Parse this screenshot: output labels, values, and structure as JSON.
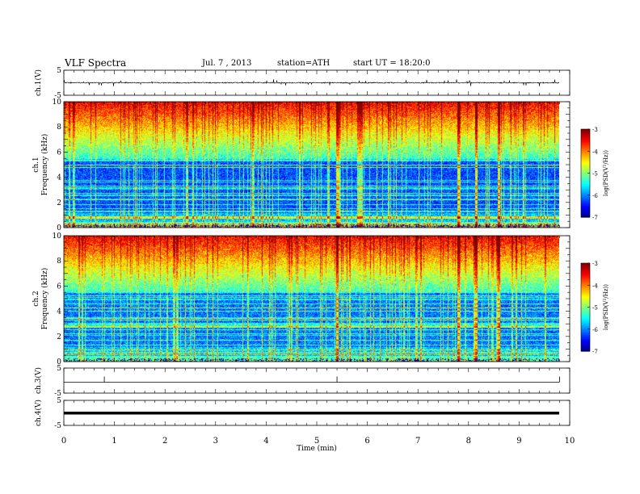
{
  "header": {
    "title": "VLF Spectra",
    "date": "Jul. 7 , 2013",
    "station": "station=ATH",
    "start": "start UT = 18:20:0"
  },
  "chart_data": [
    {
      "type": "line",
      "panel": "ch1-waveform",
      "ylabel": "ch.1(V)",
      "yticks": [
        "5",
        "-5"
      ],
      "ylim": [
        -5,
        5
      ],
      "xlim": [
        0,
        9.8
      ],
      "baseline": 0,
      "color": "#000000"
    },
    {
      "type": "heatmap",
      "panel": "ch1-spectrogram",
      "ylabel_top": "ch.1",
      "ylabel": "Frequency (kHz)",
      "yticks": [
        "0",
        "2",
        "4",
        "6",
        "8",
        "10"
      ],
      "ylim": [
        0,
        10
      ],
      "xlim": [
        0,
        9.8
      ],
      "colorbar": {
        "label": "log(PSD(V²/Hz))",
        "ticks": [
          "-3",
          "-4",
          "-5",
          "-6",
          "-7"
        ],
        "range": [
          -7,
          -3
        ]
      },
      "strong_sferics_min": [
        5.4,
        7.8,
        8.15,
        8.6
      ]
    },
    {
      "type": "heatmap",
      "panel": "ch2-spectrogram",
      "ylabel_top": "ch.2",
      "ylabel": "Frequency (kHz)",
      "yticks": [
        "0",
        "2",
        "4",
        "6",
        "8",
        "10"
      ],
      "ylim": [
        0,
        10
      ],
      "xlim": [
        0,
        9.8
      ],
      "colorbar": {
        "label": "log(PSD(V²/Hz))",
        "ticks": [
          "-3",
          "-4",
          "-5",
          "-6",
          "-7"
        ],
        "range": [
          -7,
          -3
        ]
      },
      "strong_sferics_min": [
        5.4,
        7.8,
        8.15,
        8.6
      ]
    },
    {
      "type": "line",
      "panel": "ch3-waveform",
      "ylabel": "ch.3(V)",
      "yticks": [
        "5",
        "-5"
      ],
      "ylim": [
        -5,
        5
      ],
      "xlim": [
        0,
        9.8
      ],
      "baseline": 0,
      "spikes_min": [
        0.8,
        5.4,
        9.8
      ],
      "color": "#000000"
    },
    {
      "type": "line",
      "panel": "ch4-waveform",
      "ylabel": "ch.4(V)",
      "yticks": [
        "5",
        "-5"
      ],
      "ylim": [
        -5,
        5
      ],
      "xlim": [
        0,
        9.8
      ],
      "baseline": 0,
      "color": "#000000"
    }
  ],
  "x_axis": {
    "label": "Time (min)",
    "ticks": [
      "0",
      "1",
      "2",
      "3",
      "4",
      "5",
      "6",
      "7",
      "8",
      "9",
      "10"
    ],
    "range": [
      0,
      10
    ]
  }
}
